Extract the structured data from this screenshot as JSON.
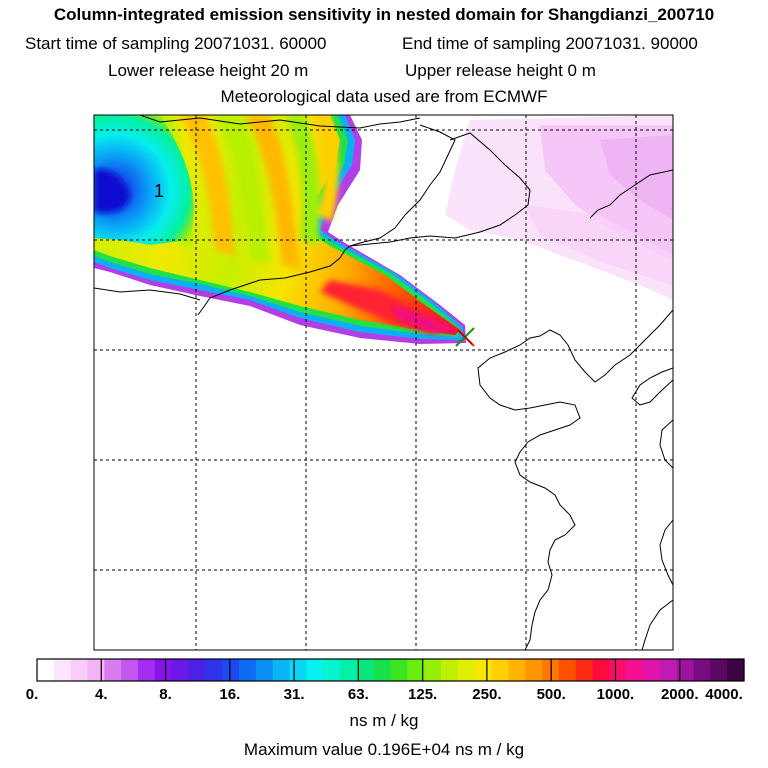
{
  "header": {
    "title": "Column-integrated emission sensitivity in nested domain for Shangdianzi_200710",
    "start_label": "Start time of sampling 20071031. 60000",
    "end_label": "End time of sampling 20071031. 90000",
    "lower_label": "Lower release height   20 m",
    "upper_label": "Upper release height    0 m",
    "met_label": "Meteorological data used are from ECMWF"
  },
  "map": {
    "contour_marker": "1",
    "station_marker": "release-site-x"
  },
  "colorbar": {
    "tick_labels": [
      "0.",
      "4.",
      "8.",
      "16.",
      "31.",
      "63.",
      "125.",
      "250.",
      "500.",
      "1000.",
      "2000.",
      "4000."
    ],
    "units": "ns m / kg",
    "colors": [
      "#ffffff",
      "#fde4fd",
      "#f9ccfa",
      "#f4b2f7",
      "#d97cf0",
      "#c257ef",
      "#a62cef",
      "#8714ea",
      "#6a19e6",
      "#4d20e6",
      "#2f33ea",
      "#1c4af0",
      "#0d6df2",
      "#0b8ff4",
      "#0ab5f6",
      "#08d6f4",
      "#07f1ef",
      "#05f6cf",
      "#05f0a6",
      "#06e77c",
      "#16e04a",
      "#3be621",
      "#69ec10",
      "#95ef06",
      "#bff000",
      "#e1ee00",
      "#f8e600",
      "#ffd000",
      "#ffb500",
      "#ff9600",
      "#ff7800",
      "#ff5200",
      "#ff2a12",
      "#ff0a3e",
      "#fc0c6c",
      "#f20f90",
      "#e114aa",
      "#c11ab4",
      "#9e14a0",
      "#7a0c82",
      "#5a0862",
      "#3d0444"
    ]
  },
  "footer": {
    "max_label": "Maximum value  0.196E+04 ns m / kg"
  }
}
